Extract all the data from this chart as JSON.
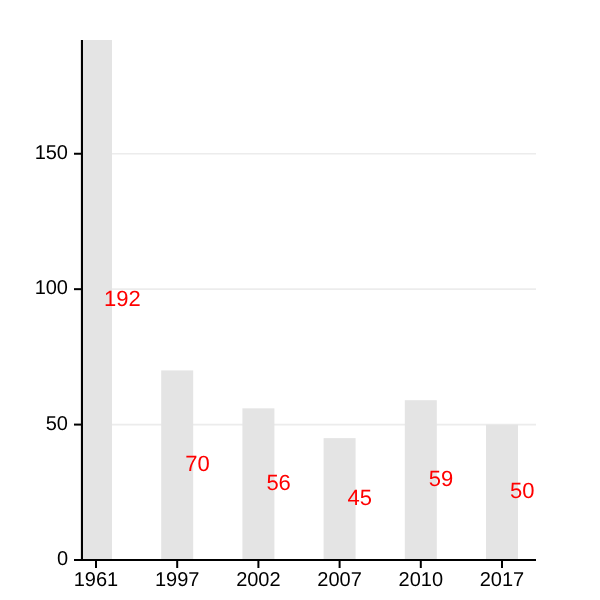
{
  "chart_data": {
    "type": "bar",
    "categories": [
      "1961",
      "1997",
      "2002",
      "2007",
      "2010",
      "2017"
    ],
    "values": [
      192,
      70,
      56,
      45,
      59,
      50
    ],
    "color": "#e4e4e4",
    "ylim": [
      0,
      192
    ],
    "yticks": [
      0,
      50,
      100,
      150
    ],
    "grid": "y",
    "data_labels": true
  }
}
